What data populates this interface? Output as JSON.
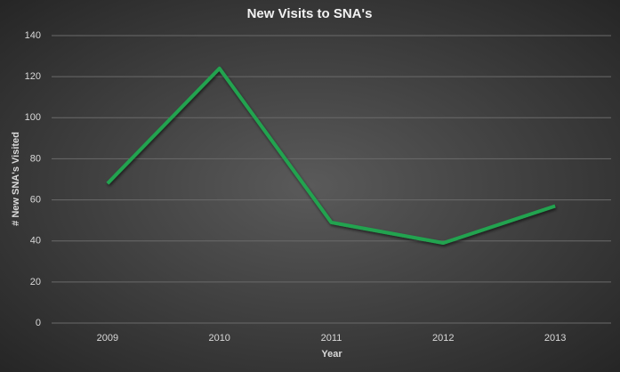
{
  "chart_data": {
    "type": "line",
    "title": "New Visits to SNA's",
    "x_label": "Year",
    "y_label": "# New SNA's Visited",
    "categories": [
      "2009",
      "2010",
      "2011",
      "2012",
      "2013"
    ],
    "values": [
      68,
      124,
      49,
      39,
      57
    ],
    "color": "#21a350",
    "ylim": [
      0,
      140
    ],
    "yticks": [
      0,
      20,
      40,
      60,
      80,
      100,
      120,
      140
    ],
    "grid": true
  }
}
